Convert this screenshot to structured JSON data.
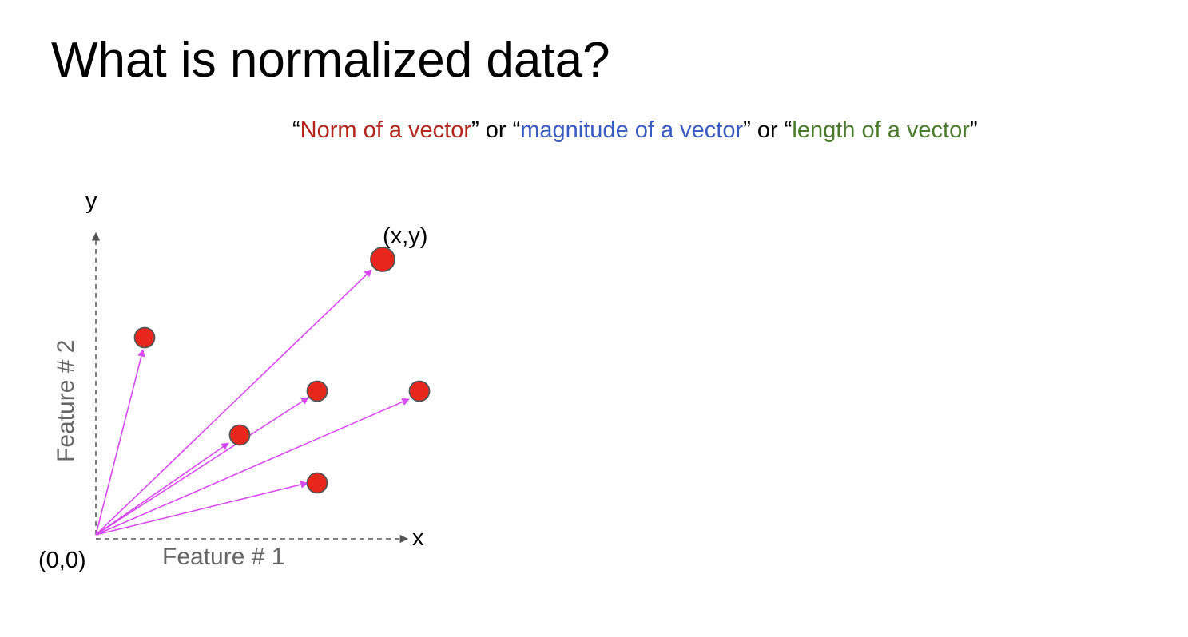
{
  "title": "What is normalized data?",
  "subtitle": {
    "open_quote_1": "“",
    "term_1": "Norm of a vector",
    "close_quote_1": "”",
    "or_1": " or ",
    "open_quote_2": "“",
    "term_2": "magnitude of a vector",
    "close_quote_2": "”",
    "or_2": " or ",
    "open_quote_3": "“",
    "term_3": "length of a vector",
    "close_quote_3": "”",
    "colors": {
      "term_1": "#b3261e",
      "term_2": "#3a5bbf",
      "term_3": "#4a7a2c"
    }
  },
  "diagram": {
    "y_axis_label": "y",
    "x_axis_label": "x",
    "y_feature_label": "Feature # 2",
    "x_feature_label": "Feature # 1",
    "origin_label": "(0,0)",
    "point_label": "(x,y)",
    "colors": {
      "vector": "#d84af0",
      "point_fill": "#e8261c",
      "point_stroke": "#555555",
      "axis": "#555555",
      "feature_label": "#666666"
    }
  }
}
